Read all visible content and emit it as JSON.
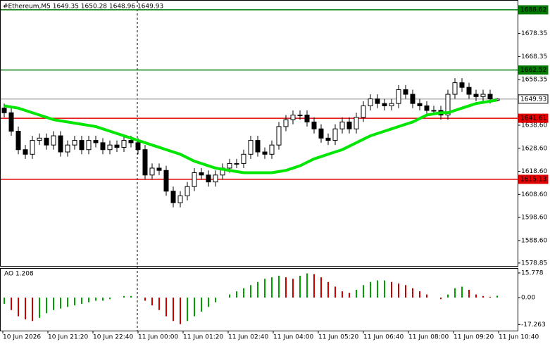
{
  "chart_data": [
    {
      "type": "candlestick",
      "title": "#Ethereum,M5  1649.35 1650.28 1648.96 1649.93",
      "open": [
        1646,
        1644,
        1636,
        1628,
        1626,
        1632,
        1633,
        1630,
        1634,
        1627,
        1630,
        1632,
        1628,
        1632,
        1631,
        1628,
        1630,
        1629,
        1632,
        1631,
        1628,
        1617,
        1620,
        1619,
        1610,
        1605,
        1608,
        1612,
        1618,
        1617,
        1614,
        1617,
        1620,
        1622,
        1622,
        1626,
        1632,
        1627,
        1626,
        1630,
        1638,
        1641,
        1643,
        1643,
        1640,
        1637,
        1633,
        1632,
        1637,
        1640,
        1637,
        1642,
        1647,
        1650,
        1648,
        1647,
        1648,
        1654,
        1652,
        1648,
        1647,
        1645,
        1645,
        1643,
        1652,
        1657,
        1655,
        1652,
        1651,
        1652,
        1649.35
      ],
      "high": [
        1648,
        1646,
        1638,
        1630,
        1634,
        1635,
        1635,
        1636,
        1636,
        1632,
        1634,
        1634,
        1634,
        1634,
        1633,
        1632,
        1632,
        1634,
        1634,
        1633,
        1630,
        1622,
        1622,
        1621,
        1612,
        1610,
        1614,
        1620,
        1620,
        1619,
        1619,
        1622,
        1624,
        1624,
        1628,
        1634,
        1634,
        1629,
        1632,
        1640,
        1643,
        1645,
        1645,
        1645,
        1642,
        1639,
        1635,
        1639,
        1642,
        1642,
        1644,
        1649,
        1652,
        1652,
        1650,
        1650,
        1656,
        1656,
        1654,
        1650,
        1649,
        1647,
        1647,
        1654,
        1659,
        1659,
        1657,
        1654,
        1654,
        1654,
        1650.28
      ],
      "low": [
        1642,
        1634,
        1626,
        1624,
        1624,
        1630,
        1628,
        1628,
        1625,
        1625,
        1628,
        1626,
        1626,
        1629,
        1626,
        1626,
        1627,
        1627,
        1629,
        1626,
        1615,
        1615,
        1617,
        1608,
        1603,
        1603,
        1606,
        1610,
        1615,
        1612,
        1612,
        1615,
        1618,
        1620,
        1620,
        1624,
        1625,
        1624,
        1624,
        1628,
        1636,
        1639,
        1641,
        1638,
        1635,
        1631,
        1630,
        1630,
        1635,
        1635,
        1635,
        1640,
        1645,
        1646,
        1645,
        1645,
        1646,
        1650,
        1646,
        1645,
        1643,
        1643,
        1641,
        1641,
        1650,
        1653,
        1650,
        1649,
        1649,
        1648,
        1648.96
      ],
      "close": [
        1644,
        1636,
        1628,
        1626,
        1632,
        1633,
        1630,
        1634,
        1627,
        1630,
        1632,
        1628,
        1632,
        1631,
        1628,
        1630,
        1629,
        1632,
        1631,
        1628,
        1617,
        1620,
        1619,
        1610,
        1605,
        1608,
        1612,
        1618,
        1617,
        1614,
        1617,
        1620,
        1622,
        1622,
        1626,
        1632,
        1627,
        1626,
        1630,
        1638,
        1641,
        1643,
        1643,
        1640,
        1637,
        1633,
        1632,
        1637,
        1640,
        1637,
        1642,
        1647,
        1650,
        1648,
        1647,
        1648,
        1654,
        1652,
        1648,
        1647,
        1645,
        1645,
        1643,
        1652,
        1657,
        1655,
        1652,
        1651,
        1652,
        1650,
        1649.93
      ],
      "ma": {
        "color": "#00e600",
        "values": [
          1647,
          1646.5,
          1646,
          1645,
          1644,
          1643,
          1642,
          1641,
          1640.5,
          1640,
          1639.5,
          1639,
          1638.5,
          1638,
          1637,
          1636,
          1635,
          1634,
          1633,
          1632,
          1631,
          1630,
          1629,
          1628,
          1627,
          1626,
          1624.5,
          1623,
          1622,
          1621,
          1620,
          1619.5,
          1619,
          1618.5,
          1618,
          1618,
          1618,
          1618,
          1618,
          1618.5,
          1619,
          1620,
          1621,
          1622.5,
          1624,
          1625,
          1626,
          1627,
          1628,
          1629.5,
          1631,
          1632.5,
          1634,
          1635,
          1636,
          1637,
          1638,
          1639,
          1640,
          1641.5,
          1643,
          1643.5,
          1644,
          1644,
          1645,
          1646,
          1647,
          1648,
          1648.5,
          1649,
          1649.5
        ]
      },
      "ylim": [
        1577.6,
        1692.87
      ],
      "yticks": [
        1678.35,
        1668.35,
        1658.35,
        {
          "value": 1638.6,
          "label": "1638.60"
        },
        {
          "value": 1628.6,
          "label": "1628.60"
        },
        {
          "value": 1618.6,
          "label": "1618.60"
        },
        {
          "value": 1608.6,
          "label": "1608.60"
        },
        {
          "value": 1598.6,
          "label": "1598.60"
        },
        {
          "value": 1588.6,
          "label": "1588.60"
        },
        1578.85
      ],
      "levels": [
        {
          "value": 1688.62,
          "color": "#007a00"
        },
        {
          "value": 1662.52,
          "color": "#007a00"
        },
        {
          "value": 1649.93,
          "color": "#b0b0b0"
        },
        {
          "value": 1641.61,
          "color": "#e00000"
        },
        {
          "value": 1615.13,
          "color": "#e00000"
        }
      ],
      "x_labels": [
        "10 Jun 2026",
        "10 Jun 21:20",
        "10 Jun 22:40",
        "11 Jun 00:00",
        "11 Jun 01:20",
        "11 Jun 02:40",
        "11 Jun 04:00",
        "11 Jun 05:20",
        "11 Jun 06:40",
        "11 Jun 08:00",
        "11 Jun 09:20",
        "11 Jun 10:40"
      ]
    },
    {
      "type": "ao",
      "title": "AO 1.208",
      "values": [
        -4,
        -8,
        -12,
        -14,
        -15,
        -13,
        -10,
        -8,
        -7,
        -6,
        -5,
        -4,
        -3,
        -2,
        -2,
        -1,
        0,
        1,
        1,
        0,
        -2,
        -5,
        -8,
        -12,
        -15,
        -17,
        -15,
        -12,
        -9,
        -6,
        -3,
        0,
        2,
        4,
        6,
        8,
        10,
        12,
        13,
        14,
        13,
        12,
        14,
        15.5,
        15,
        13,
        10,
        7,
        4,
        3,
        5,
        8,
        10,
        11,
        11,
        10,
        9,
        8,
        6,
        4,
        2,
        0,
        -1,
        2,
        6,
        7,
        5,
        2,
        1,
        0.5,
        1.208
      ],
      "up_color": "#00a000",
      "down_color": "#c80000",
      "ylim": [
        -21.17,
        18.47
      ],
      "yticks": [
        15.778,
        {
          "value": 0,
          "label": "0.00"
        },
        -17.263
      ]
    }
  ]
}
